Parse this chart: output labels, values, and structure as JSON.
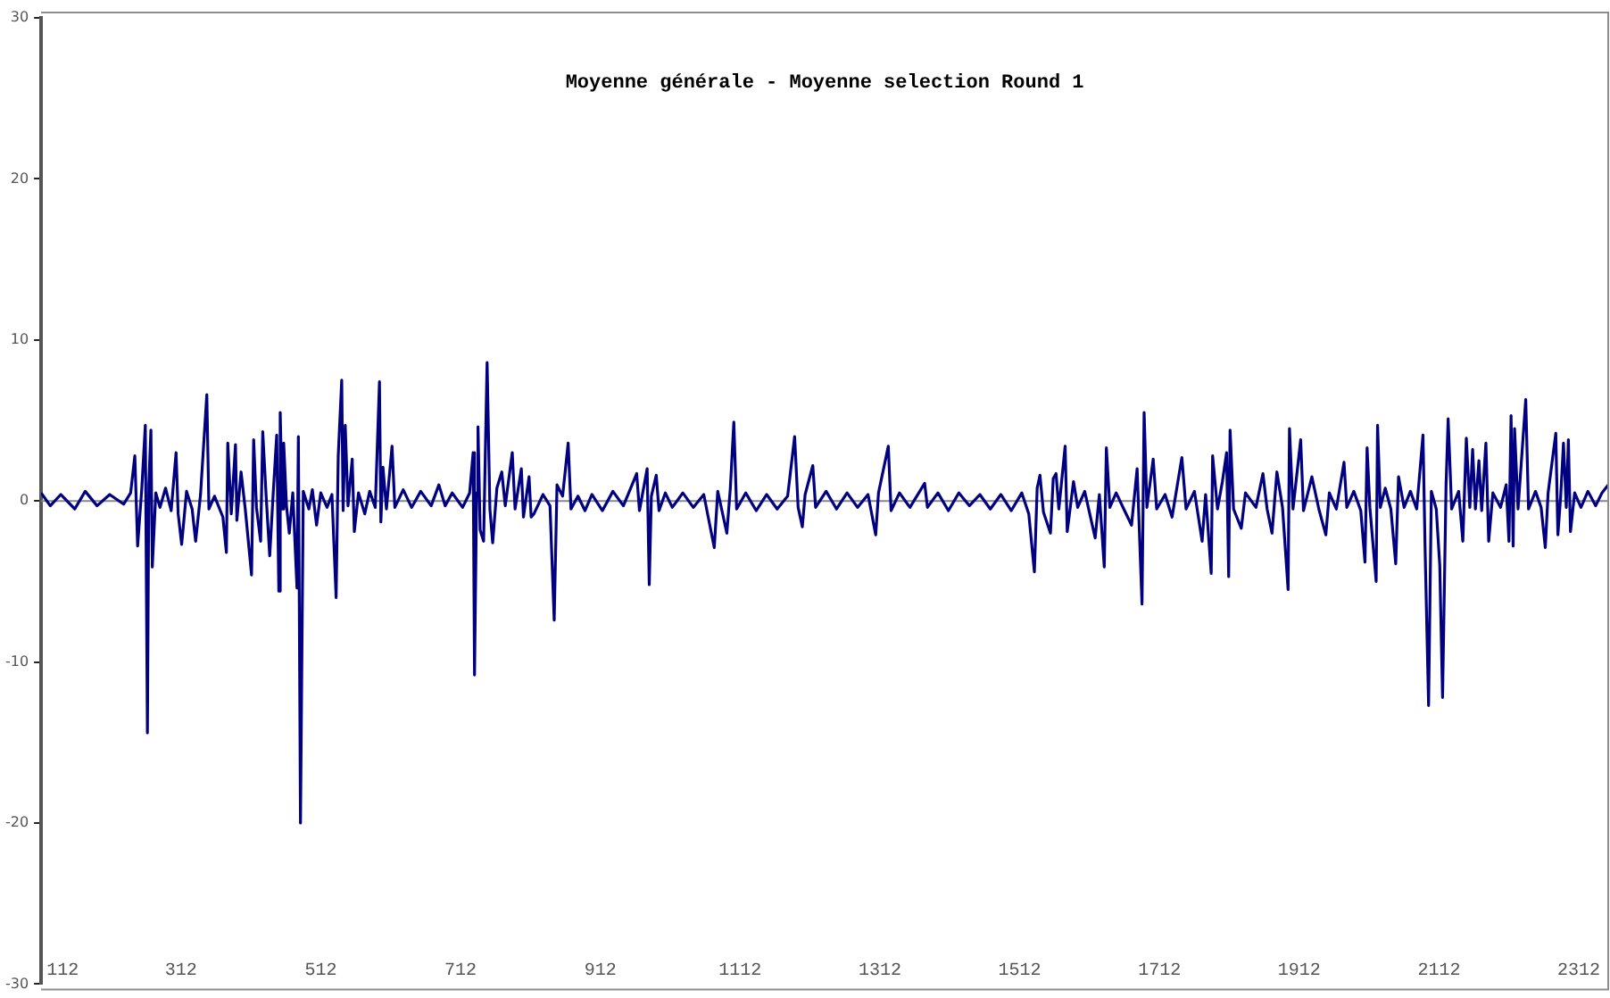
{
  "chart_data": {
    "type": "line",
    "title": "Moyenne générale - Moyenne selection Round 1",
    "xlim": [
      112,
      2354
    ],
    "xticks": [
      112,
      312,
      512,
      712,
      912,
      1112,
      1312,
      1512,
      1712,
      1912,
      2112,
      2312
    ],
    "ylim": [
      -30,
      30
    ],
    "yticks": [
      -30,
      -20,
      -10,
      0,
      10,
      20,
      30
    ],
    "grid": false,
    "legend": false,
    "ref_lines": [
      {
        "axis": "y",
        "value": 0,
        "color": "#888888"
      }
    ],
    "marker": "none",
    "line_style": "solid",
    "series": [
      {
        "color": "#000080",
        "x": [
          112,
          125,
          140,
          160,
          175,
          192,
          210,
          230,
          240,
          246,
          250,
          256,
          261,
          264,
          266,
          269,
          271,
          276,
          282,
          290,
          298,
          305,
          308,
          313,
          320,
          328,
          333,
          340,
          349,
          352,
          360,
          372,
          377,
          379,
          384,
          390,
          392,
          398,
          404,
          413,
          416,
          420,
          426,
          429,
          434,
          439,
          444,
          449,
          452,
          454,
          457,
          459,
          463,
          467,
          472,
          478,
          480,
          483,
          487,
          495,
          500,
          506,
          512,
          521,
          528,
          534,
          537,
          542,
          544,
          547,
          551,
          557,
          560,
          566,
          575,
          582,
          590,
          596,
          598,
          601,
          606,
          609,
          614,
          618,
          630,
          642,
          655,
          670,
          681,
          690,
          700,
          715,
          725,
          730,
          732,
          735,
          737,
          740,
          745,
          750,
          754,
          758,
          764,
          771,
          776,
          786,
          790,
          799,
          802,
          810,
          813,
          817,
          830,
          840,
          846,
          850,
          858,
          866,
          870,
          880,
          890,
          900,
          915,
          930,
          945,
          964,
          968,
          979,
          982,
          985,
          992,
          996,
          1005,
          1015,
          1030,
          1045,
          1060,
          1075,
          1080,
          1093,
          1098,
          1103,
          1107,
          1120,
          1135,
          1150,
          1165,
          1180,
          1190,
          1195,
          1201,
          1205,
          1216,
          1220,
          1235,
          1250,
          1265,
          1280,
          1295,
          1306,
          1310,
          1324,
          1328,
          1340,
          1355,
          1376,
          1380,
          1395,
          1410,
          1425,
          1440,
          1455,
          1470,
          1485,
          1500,
          1515,
          1525,
          1533,
          1537,
          1541,
          1546,
          1556,
          1560,
          1564,
          1568,
          1577,
          1580,
          1589,
          1595,
          1605,
          1620,
          1626,
          1633,
          1636,
          1641,
          1650,
          1662,
          1672,
          1680,
          1687,
          1690,
          1694,
          1703,
          1708,
          1720,
          1730,
          1744,
          1750,
          1762,
          1773,
          1778,
          1786,
          1788,
          1795,
          1802,
          1808,
          1811,
          1813,
          1818,
          1829,
          1835,
          1850,
          1860,
          1866,
          1873,
          1880,
          1888,
          1896,
          1898,
          1903,
          1914,
          1918,
          1930,
          1940,
          1950,
          1955,
          1965,
          1976,
          1980,
          1990,
          2000,
          2006,
          2009,
          2013,
          2022,
          2024,
          2028,
          2035,
          2043,
          2050,
          2054,
          2062,
          2071,
          2080,
          2089,
          2092,
          2097,
          2101,
          2108,
          2113,
          2117,
          2122,
          2125,
          2130,
          2140,
          2146,
          2151,
          2156,
          2160,
          2164,
          2169,
          2173,
          2179,
          2183,
          2189,
          2200,
          2208,
          2212,
          2215,
          2218,
          2220,
          2225,
          2236,
          2240,
          2250,
          2258,
          2264,
          2268,
          2279,
          2282,
          2286,
          2290,
          2294,
          2297,
          2300,
          2306,
          2315,
          2325,
          2336,
          2345,
          2354
        ],
        "values": [
          0.5,
          -0.3,
          0.4,
          -0.5,
          0.6,
          -0.3,
          0.4,
          -0.2,
          0.5,
          2.8,
          -2.8,
          0.8,
          4.7,
          -14.4,
          1.0,
          4.4,
          -4.1,
          0.5,
          -0.4,
          0.8,
          -0.6,
          3.0,
          -0.8,
          -2.7,
          0.6,
          -0.5,
          -2.5,
          0.4,
          6.6,
          -0.5,
          0.3,
          -1.0,
          -3.2,
          3.6,
          -0.8,
          3.5,
          -1.2,
          1.8,
          -0.5,
          -4.6,
          3.8,
          -0.4,
          -2.5,
          4.3,
          0.2,
          -3.4,
          0.5,
          4.1,
          -5.6,
          5.5,
          -0.5,
          3.6,
          -0.3,
          -2.0,
          0.5,
          -5.4,
          4.0,
          -20.0,
          0.6,
          -0.5,
          0.7,
          -1.5,
          0.5,
          -0.4,
          0.4,
          -6.0,
          2.8,
          7.5,
          -0.6,
          4.7,
          -0.3,
          2.6,
          -1.9,
          0.5,
          -0.8,
          0.6,
          -0.4,
          7.4,
          -1.3,
          2.1,
          -0.5,
          1.0,
          3.4,
          -0.4,
          0.7,
          -0.4,
          0.6,
          -0.3,
          1.0,
          -0.3,
          0.5,
          -0.4,
          0.5,
          3.0,
          -10.8,
          0.5,
          4.6,
          -1.8,
          -2.5,
          8.6,
          -0.5,
          -2.6,
          0.8,
          1.8,
          -0.3,
          3.0,
          -0.5,
          2.0,
          -1.0,
          1.5,
          -1.0,
          -0.8,
          0.4,
          -0.3,
          -7.4,
          1.0,
          0.3,
          3.6,
          -0.5,
          0.3,
          -0.6,
          0.4,
          -0.6,
          0.6,
          -0.3,
          1.7,
          -0.6,
          2.0,
          -5.2,
          0.3,
          1.6,
          -0.6,
          0.5,
          -0.4,
          0.5,
          -0.4,
          0.4,
          -2.9,
          0.6,
          -2.0,
          0.8,
          4.9,
          -0.5,
          0.5,
          -0.6,
          0.4,
          -0.5,
          0.3,
          4.0,
          -0.4,
          -1.6,
          0.4,
          2.2,
          -0.4,
          0.6,
          -0.5,
          0.5,
          -0.4,
          0.4,
          -2.1,
          0.5,
          3.4,
          -0.6,
          0.5,
          -0.4,
          1.1,
          -0.4,
          0.5,
          -0.6,
          0.5,
          -0.3,
          0.4,
          -0.5,
          0.4,
          -0.6,
          0.5,
          -0.8,
          -4.4,
          0.8,
          1.6,
          -0.7,
          -2.0,
          1.4,
          1.7,
          -0.5,
          3.4,
          -1.9,
          1.2,
          -0.4,
          0.6,
          -2.3,
          0.4,
          -4.1,
          3.3,
          -0.4,
          0.5,
          -0.6,
          -1.5,
          2.0,
          -6.4,
          5.5,
          -0.4,
          2.6,
          -0.5,
          0.4,
          -1.0,
          2.7,
          -0.5,
          0.6,
          -2.5,
          0.4,
          -4.5,
          2.8,
          -0.5,
          1.2,
          3.0,
          -4.7,
          4.4,
          -0.5,
          -1.7,
          0.5,
          -0.4,
          1.7,
          -0.5,
          -2.0,
          1.8,
          -0.4,
          -5.5,
          4.5,
          -0.5,
          3.8,
          -0.6,
          1.5,
          -0.5,
          -2.1,
          0.5,
          -0.5,
          2.4,
          -0.4,
          0.6,
          -0.6,
          -3.8,
          3.3,
          -0.4,
          -5.0,
          4.7,
          -0.4,
          0.8,
          -0.5,
          -3.9,
          1.5,
          -0.4,
          0.6,
          -0.5,
          4.1,
          -3.0,
          -12.7,
          0.6,
          -0.5,
          -4.0,
          -12.2,
          1.0,
          5.1,
          -0.5,
          0.6,
          -2.5,
          3.9,
          -0.4,
          3.2,
          -0.5,
          2.5,
          -0.6,
          3.6,
          -2.5,
          0.5,
          -0.4,
          1.0,
          -2.5,
          5.3,
          -2.8,
          4.5,
          -0.5,
          6.3,
          -0.5,
          0.6,
          -0.4,
          -2.9,
          0.5,
          4.2,
          -2.1,
          0.3,
          3.6,
          -0.4,
          3.8,
          -1.9,
          0.5,
          -0.4,
          0.6,
          -0.3,
          0.5,
          1.0
        ]
      }
    ]
  }
}
